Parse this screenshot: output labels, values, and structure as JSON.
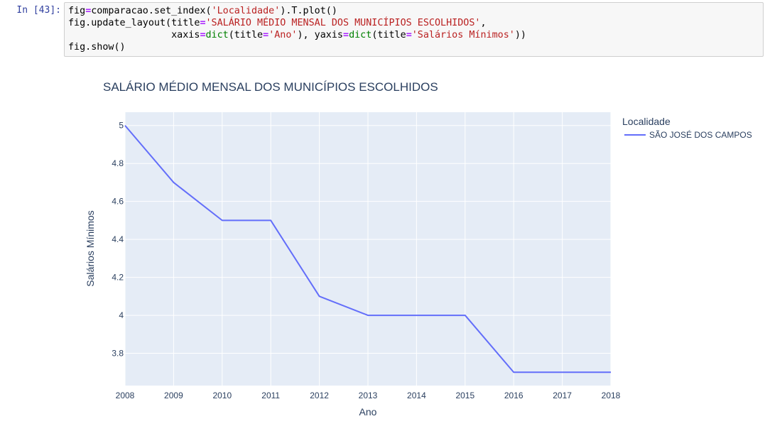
{
  "cell": {
    "prompt": "In [43]:",
    "code": {
      "l1_a": "fig",
      "l1_op": "=",
      "l1_b": "comparacao.set_index(",
      "l1_s": "'Localidade'",
      "l1_c": ").T.plot()",
      "l2_a": "fig.update_layout(title",
      "l2_op": "=",
      "l2_s": "'SALÁRIO MÉDIO MENSAL DOS MUNICÍPIOS ESCOLHIDOS'",
      "l2_b": ",",
      "l3_indent": "                  ",
      "l3_a": "xaxis",
      "l3_op1": "=",
      "l3_f1": "dict",
      "l3_b": "(title",
      "l3_op2": "=",
      "l3_s1": "'Ano'",
      "l3_c": "), yaxis",
      "l3_op3": "=",
      "l3_f2": "dict",
      "l3_d": "(title",
      "l3_op4": "=",
      "l3_s2": "'Salários Mínimos'",
      "l3_e": "))",
      "l4": "fig.show()"
    }
  },
  "chart_data": {
    "type": "line",
    "title": "SALÁRIO MÉDIO MENSAL DOS MUNICÍPIOS ESCOLHIDOS",
    "xlabel": "Ano",
    "ylabel": "Salários Mínimos",
    "x": [
      2008,
      2009,
      2010,
      2011,
      2012,
      2013,
      2014,
      2015,
      2016,
      2017,
      2018
    ],
    "xticks": [
      "2008",
      "2009",
      "2010",
      "2011",
      "2012",
      "2013",
      "2014",
      "2015",
      "2016",
      "2017",
      "2018"
    ],
    "yticks": [
      "5",
      "4.8",
      "4.6",
      "4.4",
      "4.2",
      "4",
      "3.8"
    ],
    "ytick_values": [
      5,
      4.8,
      4.6,
      4.4,
      4.2,
      4,
      3.8
    ],
    "xlim": [
      2008,
      2018
    ],
    "ylim": [
      3.63,
      5.07
    ],
    "grid": true,
    "legend_title": "Localidade",
    "legend_position": "right",
    "series": [
      {
        "name": "SÃO JOSÉ DOS CAMPOS",
        "color": "#636efa",
        "values": [
          5.0,
          4.7,
          4.5,
          4.5,
          4.1,
          4.0,
          4.0,
          4.0,
          3.7,
          3.7,
          3.7
        ]
      }
    ],
    "plot_bgcolor": "#e5ecf6",
    "text_color": "#2a3f5f"
  }
}
